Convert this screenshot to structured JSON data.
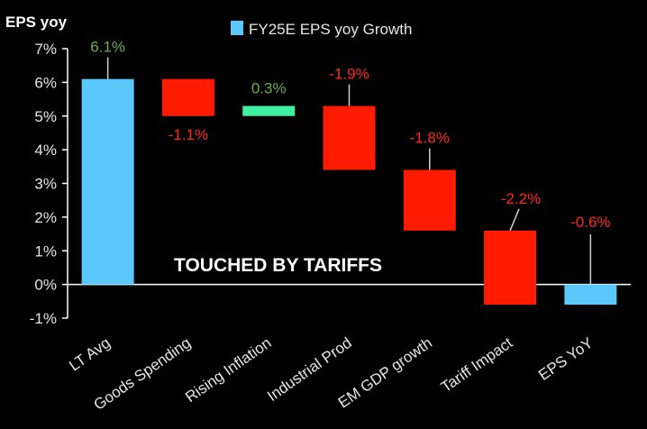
{
  "chart_data": {
    "type": "bar",
    "subtype": "waterfall",
    "ylabel": "EPS yoy",
    "legend": {
      "label": "FY25E EPS yoy Growth",
      "color": "#5ac8fa",
      "placement": "top"
    },
    "ylim": [
      -1,
      7
    ],
    "yticks": [
      "-1%",
      "0%",
      "1%",
      "2%",
      "3%",
      "4%",
      "5%",
      "6%",
      "7%"
    ],
    "grid": false,
    "annotation": "TOUCHED BY TARIFFS",
    "categories": [
      "LT Avg",
      "Goods Spending",
      "Rising Inflation",
      "Industrial Prod",
      "EM GDP growth",
      "Tariff Impact",
      "EPS YoY"
    ],
    "bars": [
      {
        "category": "LT Avg",
        "start": 0,
        "end": 6.1,
        "label": "6.1%",
        "kind": "total",
        "color": "#5ac8fa",
        "label_color": "#6ab04c"
      },
      {
        "category": "Goods Spending",
        "start": 6.1,
        "end": 5.0,
        "label": "-1.1%",
        "kind": "decrease",
        "color": "#ff1a00",
        "label_color": "#ff2a1a"
      },
      {
        "category": "Rising Inflation",
        "start": 5.0,
        "end": 5.3,
        "label": "0.3%",
        "kind": "increase",
        "color": "#3ef0a0",
        "label_color": "#6ab04c"
      },
      {
        "category": "Industrial Prod",
        "start": 5.3,
        "end": 3.4,
        "label": "-1.9%",
        "kind": "decrease",
        "color": "#ff1a00",
        "label_color": "#ff2a1a"
      },
      {
        "category": "EM GDP growth",
        "start": 3.4,
        "end": 1.6,
        "label": "-1.8%",
        "kind": "decrease",
        "color": "#ff1a00",
        "label_color": "#ff2a1a"
      },
      {
        "category": "Tariff Impact",
        "start": 1.6,
        "end": -0.6,
        "label": "-2.2%",
        "kind": "decrease",
        "color": "#ff1a00",
        "label_color": "#ff2a1a"
      },
      {
        "category": "EPS YoY",
        "start": 0,
        "end": -0.6,
        "label": "-0.6%",
        "kind": "total",
        "color": "#5ac8fa",
        "label_color": "#ff2a1a"
      }
    ]
  }
}
